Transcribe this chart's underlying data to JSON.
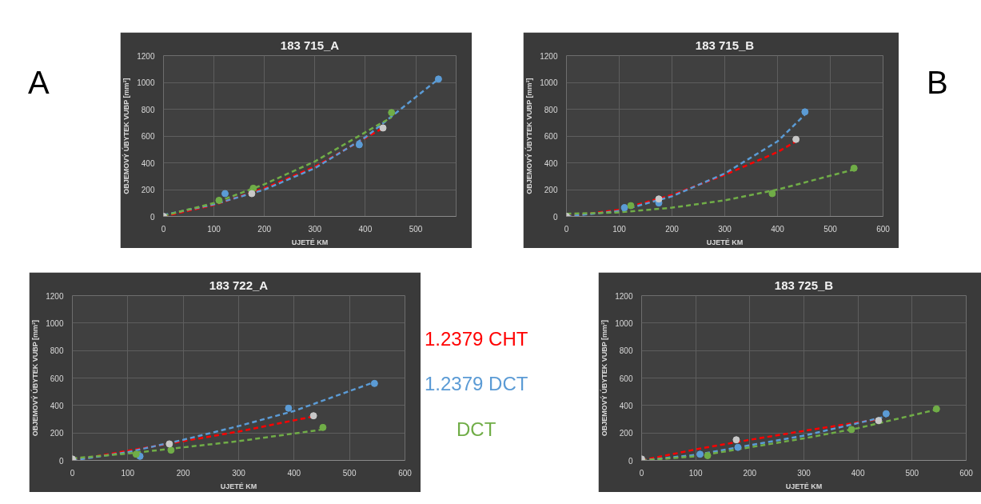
{
  "chart_data": [
    {
      "type": "scatter",
      "title": "183 715_A",
      "xlabel": "UJETÉ KM",
      "ylabel": "OBJEMOVÝ ÚBYTEK VUBP [mm³]",
      "annotations": [
        "A"
      ],
      "xlim": [
        0,
        580
      ],
      "ylim": [
        0,
        1200
      ],
      "xticks": [
        0,
        100,
        200,
        300,
        400,
        500
      ],
      "yticks": [
        0,
        200,
        400,
        600,
        800,
        1000,
        1200
      ],
      "grid": true,
      "marker": "circle",
      "series": [
        {
          "type": "line",
          "marker": "none",
          "line_style": "dashed",
          "color": "#ff0000",
          "x": [
            0,
            100,
            200,
            300,
            435
          ],
          "values": [
            0,
            85,
            210,
            370,
            660
          ]
        },
        {
          "type": "line",
          "marker": "none",
          "line_style": "dashed",
          "color": "#5b9bd5",
          "x": [
            0,
            100,
            200,
            300,
            400,
            545
          ],
          "values": [
            10,
            90,
            200,
            360,
            590,
            1025
          ]
        },
        {
          "type": "line",
          "marker": "none",
          "line_style": "dashed",
          "color": "#70ad47",
          "x": [
            0,
            100,
            200,
            300,
            452
          ],
          "values": [
            5,
            100,
            240,
            410,
            740
          ]
        },
        {
          "color": "#5b9bd5",
          "x": [
            122,
            388,
            545
          ],
          "values": [
            170,
            535,
            1025
          ]
        },
        {
          "color": "#70ad47",
          "x": [
            110,
            178,
            452
          ],
          "values": [
            120,
            210,
            775
          ]
        },
        {
          "color": "#c8c8c8",
          "x": [
            0,
            175,
            435
          ],
          "values": [
            0,
            170,
            660
          ]
        }
      ]
    },
    {
      "type": "scatter",
      "title": "183 715_B",
      "xlabel": "UJETÉ KM",
      "ylabel": "OBJEMOVÝ ÚBYTEK VUBP [mm³]",
      "annotations": [
        "B"
      ],
      "xlim": [
        0,
        600
      ],
      "ylim": [
        0,
        1200
      ],
      "xticks": [
        0,
        100,
        200,
        300,
        400,
        500,
        600
      ],
      "yticks": [
        0,
        200,
        400,
        600,
        800,
        1000,
        1200
      ],
      "grid": true,
      "marker": "circle",
      "series": [
        {
          "type": "line",
          "marker": "none",
          "line_style": "dashed",
          "color": "#ff0000",
          "x": [
            0,
            100,
            200,
            300,
            400,
            435
          ],
          "values": [
            0,
            50,
            160,
            310,
            480,
            560
          ]
        },
        {
          "type": "line",
          "marker": "none",
          "line_style": "dashed",
          "color": "#5b9bd5",
          "x": [
            0,
            100,
            200,
            300,
            400,
            452
          ],
          "values": [
            0,
            40,
            150,
            320,
            560,
            760
          ]
        },
        {
          "type": "line",
          "marker": "none",
          "line_style": "dashed",
          "color": "#70ad47",
          "x": [
            0,
            100,
            200,
            300,
            400,
            545
          ],
          "values": [
            20,
            30,
            65,
            120,
            200,
            350
          ]
        },
        {
          "color": "#5b9bd5",
          "x": [
            110,
            175,
            452
          ],
          "values": [
            65,
            100,
            780
          ]
        },
        {
          "color": "#70ad47",
          "x": [
            122,
            390,
            545
          ],
          "values": [
            80,
            170,
            360
          ]
        },
        {
          "color": "#c8c8c8",
          "x": [
            0,
            175,
            435
          ],
          "values": [
            0,
            130,
            575
          ]
        }
      ]
    },
    {
      "type": "scatter",
      "title": "183 722_A",
      "xlabel": "UJETÉ KM",
      "ylabel": "OBJEMOVÝ ÚBYTEK VUBP [mm³]",
      "xlim": [
        0,
        600
      ],
      "ylim": [
        0,
        1200
      ],
      "xticks": [
        0,
        100,
        200,
        300,
        400,
        500,
        600
      ],
      "yticks": [
        0,
        200,
        400,
        600,
        800,
        1000,
        1200
      ],
      "grid": true,
      "marker": "circle",
      "legend": "right",
      "series": [
        {
          "type": "line",
          "marker": "none",
          "line_style": "dashed",
          "name": "1.2379 CHT",
          "color": "#ff0000",
          "x": [
            0,
            100,
            200,
            300,
            435
          ],
          "values": [
            0,
            70,
            140,
            210,
            320
          ]
        },
        {
          "type": "line",
          "marker": "none",
          "line_style": "dashed",
          "name": "1.2379 DCT",
          "color": "#5b9bd5",
          "x": [
            0,
            100,
            200,
            300,
            400,
            545
          ],
          "values": [
            0,
            60,
            150,
            250,
            360,
            570
          ]
        },
        {
          "type": "line",
          "marker": "none",
          "line_style": "dashed",
          "name": "DCT",
          "color": "#70ad47",
          "x": [
            0,
            100,
            200,
            300,
            452
          ],
          "values": [
            15,
            50,
            95,
            140,
            225
          ]
        },
        {
          "color": "#5b9bd5",
          "x": [
            122,
            390,
            545
          ],
          "values": [
            30,
            380,
            560
          ]
        },
        {
          "color": "#70ad47",
          "x": [
            115,
            178,
            452
          ],
          "values": [
            45,
            75,
            240
          ]
        },
        {
          "color": "#c8c8c8",
          "x": [
            0,
            175,
            435
          ],
          "values": [
            10,
            120,
            325
          ]
        }
      ]
    },
    {
      "type": "scatter",
      "title": "183 725_B",
      "xlabel": "UJETÉ KM",
      "ylabel": "OBJEMOVÝ ÚBYTEK VUBP [mm³]",
      "xlim": [
        0,
        600
      ],
      "ylim": [
        0,
        1200
      ],
      "xticks": [
        0,
        100,
        200,
        300,
        400,
        500,
        600
      ],
      "yticks": [
        0,
        200,
        400,
        600,
        800,
        1000,
        1200
      ],
      "grid": true,
      "marker": "circle",
      "series": [
        {
          "type": "line",
          "marker": "none",
          "line_style": "dashed",
          "color": "#ff0000",
          "x": [
            0,
            100,
            200,
            300,
            438
          ],
          "values": [
            0,
            80,
            150,
            215,
            300
          ]
        },
        {
          "type": "line",
          "marker": "none",
          "line_style": "dashed",
          "color": "#5b9bd5",
          "x": [
            0,
            100,
            200,
            300,
            452
          ],
          "values": [
            0,
            40,
            110,
            180,
            320
          ]
        },
        {
          "type": "line",
          "marker": "none",
          "line_style": "dashed",
          "color": "#70ad47",
          "x": [
            0,
            100,
            200,
            300,
            400,
            545
          ],
          "values": [
            0,
            30,
            95,
            160,
            235,
            370
          ]
        },
        {
          "color": "#5b9bd5",
          "x": [
            108,
            178,
            452
          ],
          "values": [
            45,
            95,
            340
          ]
        },
        {
          "color": "#70ad47",
          "x": [
            122,
            388,
            545
          ],
          "values": [
            35,
            225,
            375
          ]
        },
        {
          "color": "#c8c8c8",
          "x": [
            0,
            175,
            438
          ],
          "values": [
            10,
            150,
            290
          ]
        }
      ]
    }
  ]
}
